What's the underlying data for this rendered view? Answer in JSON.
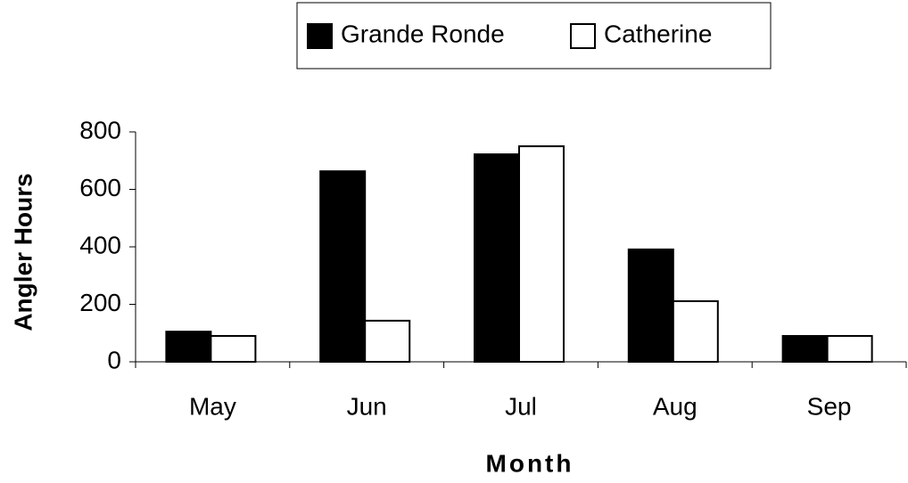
{
  "chart_data": {
    "type": "bar",
    "xlabel": "Month",
    "ylabel": "Angler Hours",
    "categories": [
      "May",
      "Jun",
      "Jul",
      "Aug",
      "Sep"
    ],
    "series": [
      {
        "name": "Grande Ronde",
        "color": "#000000",
        "values": [
          105,
          663,
          722,
          391,
          90
        ]
      },
      {
        "name": "Catherine",
        "color": "#ffffff",
        "values": [
          90,
          143,
          750,
          211,
          90
        ]
      }
    ],
    "ylim": [
      0,
      800
    ],
    "yticks": [
      0,
      200,
      400,
      600,
      800
    ],
    "legend": "top"
  }
}
